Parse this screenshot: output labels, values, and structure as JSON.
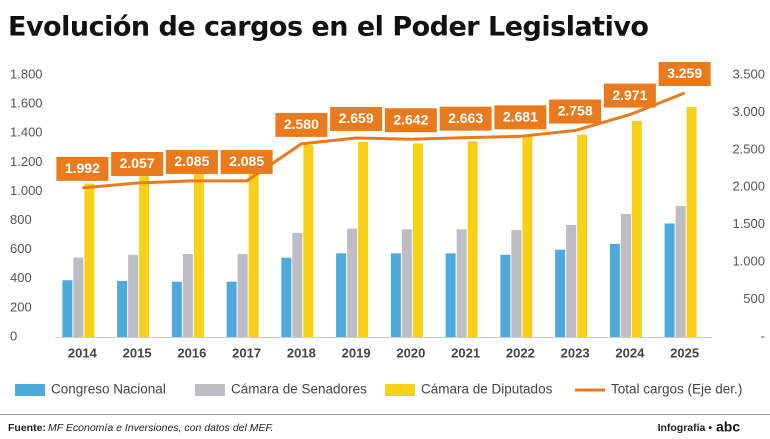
{
  "chart_data": {
    "type": "bar",
    "title": "Evolución de cargos en el Poder Legislativo",
    "categories": [
      "2014",
      "2015",
      "2016",
      "2017",
      "2018",
      "2019",
      "2020",
      "2021",
      "2022",
      "2023",
      "2024",
      "2025"
    ],
    "series": [
      {
        "name": "Congreso Nacional",
        "color": "#4ea9dd",
        "values": [
          390,
          385,
          380,
          380,
          545,
          575,
          575,
          575,
          565,
          600,
          640,
          780
        ]
      },
      {
        "name": "Cámara de Senadores",
        "color": "#bdbdc3",
        "values": [
          545,
          565,
          570,
          570,
          715,
          745,
          740,
          740,
          735,
          770,
          845,
          900
        ]
      },
      {
        "name": "Cámara de Diputados",
        "color": "#f7d117",
        "values": [
          1055,
          1105,
          1135,
          1135,
          1320,
          1340,
          1330,
          1345,
          1380,
          1390,
          1485,
          1580
        ]
      },
      {
        "name": "Total cargos (Eje der.)",
        "color": "#e97a1e",
        "type": "line",
        "axis": "y2",
        "values": [
          1992,
          2057,
          2085,
          2085,
          2580,
          2659,
          2642,
          2663,
          2681,
          2758,
          2971,
          3259
        ],
        "value_labels": [
          "1.992",
          "2.057",
          "2.085",
          "2.085",
          "2.580",
          "2.659",
          "2.642",
          "2.663",
          "2.681",
          "2.758",
          "2.971",
          "3.259"
        ]
      }
    ],
    "ylim": [
      0,
      1800
    ],
    "yticks": [
      0,
      200,
      400,
      600,
      800,
      {
        "value": 1000,
        "label": "1.000"
      },
      {
        "value": 1200,
        "label": "1.200"
      },
      {
        "value": 1400,
        "label": "1.400"
      },
      {
        "value": 1600,
        "label": "1.600"
      },
      {
        "value": 1800,
        "label": "1.800"
      }
    ],
    "y2lim": [
      0,
      3500
    ],
    "y2ticks": [
      {
        "value": 0,
        "label": "-"
      },
      500,
      {
        "value": 1000,
        "label": "1.000"
      },
      {
        "value": 1500,
        "label": "1.500"
      },
      {
        "value": 2000,
        "label": "2.000"
      },
      {
        "value": 2500,
        "label": "2.500"
      },
      {
        "value": 3000,
        "label": "3.000"
      },
      {
        "value": 3500,
        "label": "3.500"
      }
    ],
    "grid": false
  },
  "footer": {
    "source_label": "Fuente:",
    "source": "MF Economía e Inversiones, con datos del MEF.",
    "credit": "Infografía •",
    "brand": "abc"
  }
}
